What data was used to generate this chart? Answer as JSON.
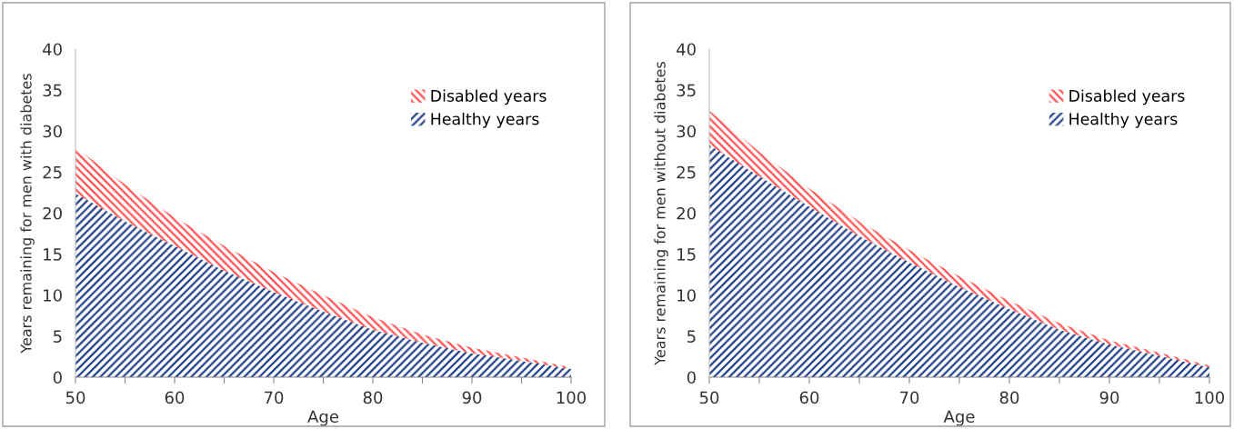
{
  "chart_data": [
    {
      "type": "area",
      "stacked": true,
      "ylabel": "Years remaining for men with diabetes",
      "xlabel": "Age",
      "x": [
        50,
        55,
        60,
        65,
        70,
        75,
        80,
        85,
        90,
        95,
        100
      ],
      "series": [
        {
          "name": "Healthy years",
          "color": "#1f3f86",
          "values": [
            22.4,
            19,
            16,
            13,
            10.4,
            8,
            5.8,
            4.2,
            2.9,
            2.0,
            1.0
          ]
        },
        {
          "name": "Disabled years",
          "color": "#ff5050",
          "values": [
            5.6,
            4.5,
            3.5,
            3.0,
            2.4,
            2.0,
            1.5,
            1.0,
            0.7,
            0.4,
            0.2
          ]
        }
      ],
      "xlim": [
        50,
        100
      ],
      "xticks": [
        50,
        {
          "value": 55,
          "label": null
        },
        60,
        {
          "value": 65,
          "label": null
        },
        70,
        {
          "value": 75,
          "label": null
        },
        80,
        {
          "value": 85,
          "label": null
        },
        90,
        {
          "value": 95,
          "label": null
        },
        100
      ],
      "ylim": [
        0,
        40
      ],
      "yticks": [
        0,
        5,
        10,
        15,
        20,
        25,
        30,
        35,
        40
      ],
      "legend": "top right",
      "grid": false
    },
    {
      "type": "area",
      "stacked": true,
      "ylabel": "Years remaining for men without diabetes",
      "xlabel": "Age",
      "x": [
        50,
        55,
        60,
        65,
        70,
        75,
        80,
        85,
        90,
        95,
        100
      ],
      "series": [
        {
          "name": "Healthy years",
          "color": "#1f3f86",
          "values": [
            28.3,
            24.5,
            20.8,
            17.2,
            14,
            11,
            8.3,
            5.8,
            4.0,
            2.6,
            1.2
          ]
        },
        {
          "name": "Disabled years",
          "color": "#ff5050",
          "values": [
            4.2,
            3.0,
            2.2,
            1.8,
            1.5,
            1.3,
            1.0,
            0.8,
            0.5,
            0.4,
            0.2
          ]
        }
      ],
      "xlim": [
        50,
        100
      ],
      "xticks": [
        50,
        {
          "value": 55,
          "label": null
        },
        60,
        {
          "value": 65,
          "label": null
        },
        70,
        {
          "value": 75,
          "label": null
        },
        80,
        {
          "value": 85,
          "label": null
        },
        90,
        {
          "value": 95,
          "label": null
        },
        100
      ],
      "ylim": [
        0,
        40
      ],
      "yticks": [
        0,
        5,
        10,
        15,
        20,
        25,
        30,
        35,
        40
      ],
      "legend": "top right",
      "grid": false
    }
  ]
}
